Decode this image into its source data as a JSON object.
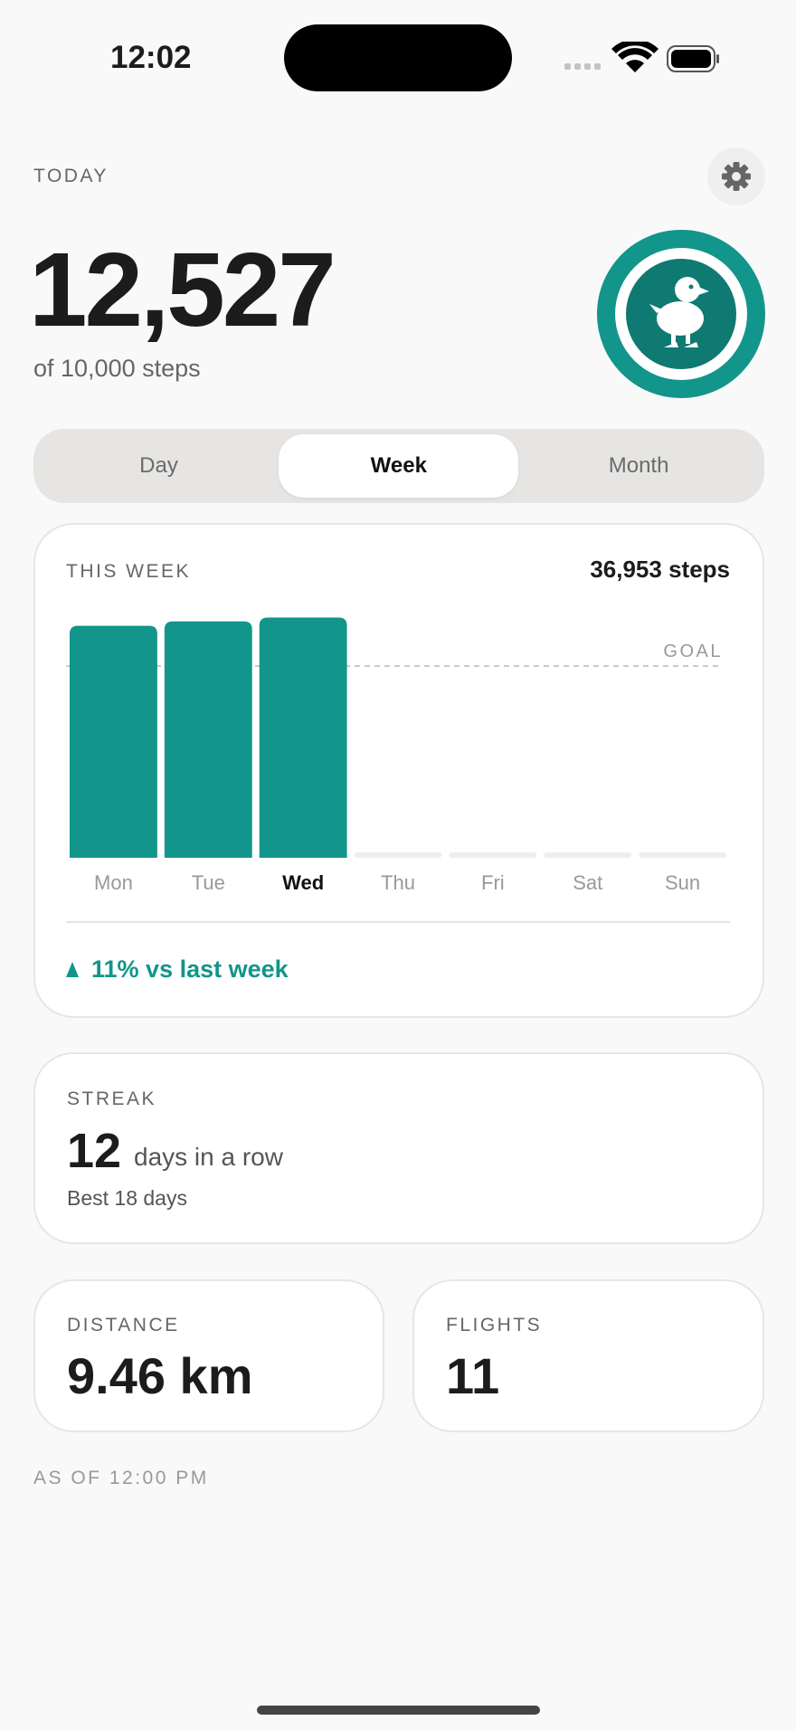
{
  "status_bar": {
    "time": "12:02"
  },
  "header": {
    "label": "TODAY",
    "steps": "12,527",
    "goal_text": "of 10,000 steps"
  },
  "tabs": [
    "Day",
    "Week",
    "Month"
  ],
  "selected_tab": 1,
  "chart_data": {
    "type": "bar",
    "title": "THIS WEEK",
    "total": "36,953 steps",
    "categories": [
      "Mon",
      "Tue",
      "Wed",
      "Thu",
      "Fri",
      "Sat",
      "Sun"
    ],
    "values": [
      12100,
      12326,
      12527,
      null,
      null,
      null,
      null
    ],
    "highlight": 2,
    "color": "#12958a",
    "ylim": [
      0,
      12600
    ],
    "goal": {
      "value": 10000,
      "label": "GOAL"
    },
    "comparison": "11% vs last week"
  },
  "streak": {
    "label": "STREAK",
    "value": "12",
    "unit": "days in a row",
    "best": "Best 18 days"
  },
  "distance": {
    "label": "DISTANCE",
    "value": "9.46 km"
  },
  "flights": {
    "label": "FLIGHTS",
    "value": "11"
  },
  "footer": "AS OF 12:00 PM"
}
